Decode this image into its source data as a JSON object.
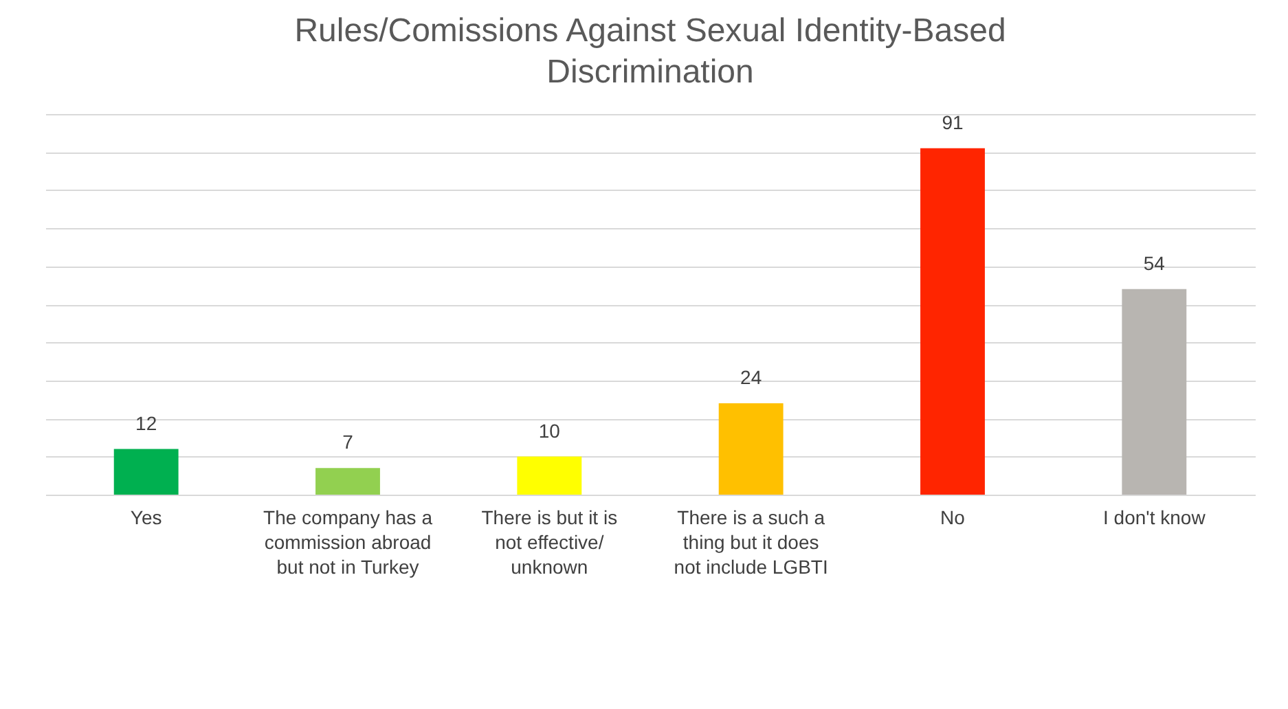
{
  "chart_data": {
    "type": "bar",
    "title": "Rules/Comissions Against Sexual Identity-Based Discrimination",
    "categories": [
      "Yes",
      "The company has a commission abroad but not in Turkey",
      "There is but it is not effective/ unknown",
      "There is a such a thing but it does not include LGBTI",
      "No",
      "I don't know"
    ],
    "values": [
      12,
      7,
      10,
      24,
      91,
      54
    ],
    "colors": [
      "#00b050",
      "#92d050",
      "#ffff00",
      "#ffc000",
      "#ff2500",
      "#b8b5b1"
    ],
    "ylim": [
      0,
      100
    ],
    "yticks": [
      0,
      10,
      20,
      30,
      40,
      50,
      60,
      70,
      80,
      90,
      100
    ],
    "grid": "y",
    "tick_labels": "x",
    "data_labels": true
  }
}
